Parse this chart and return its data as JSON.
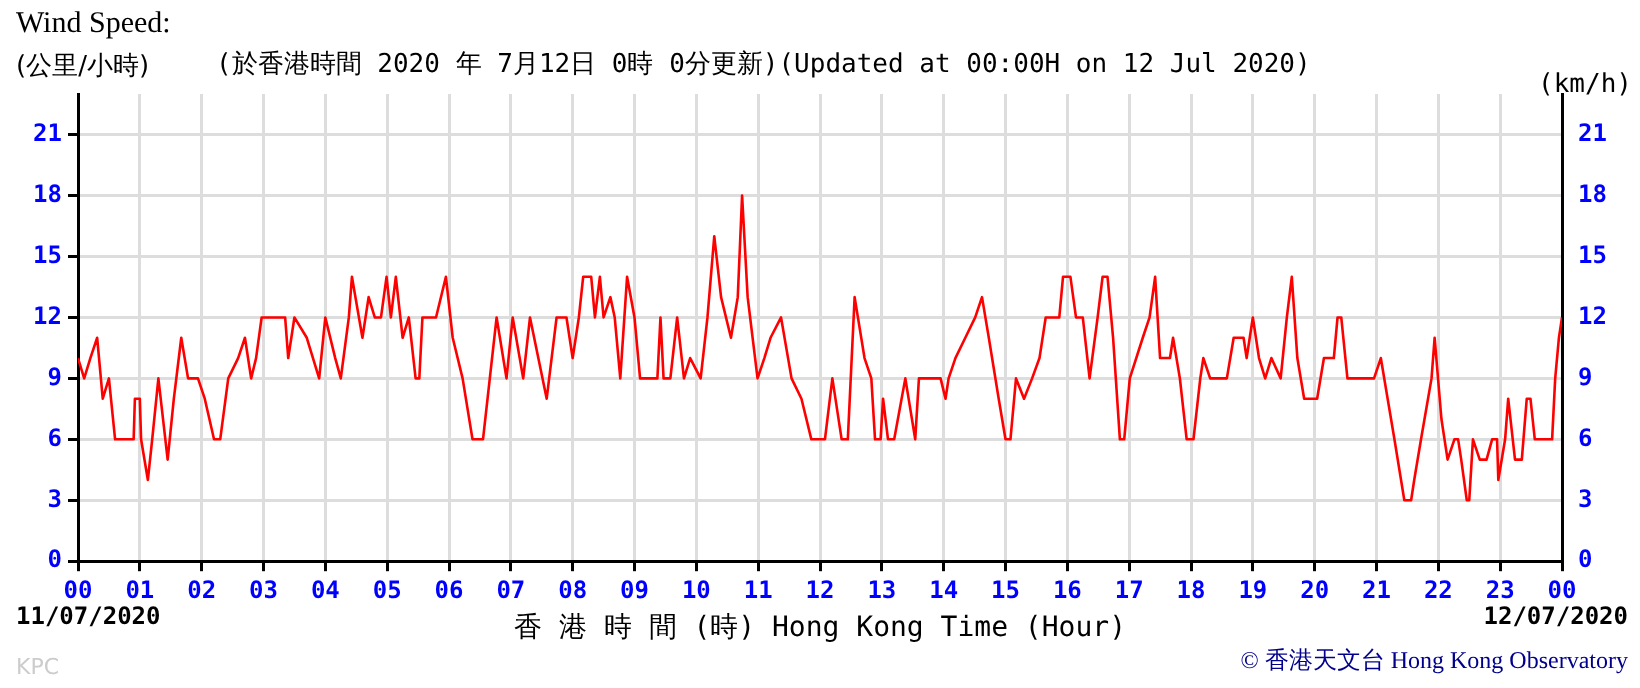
{
  "chart_data": {
    "type": "line",
    "title": "(於香港時間 2020 年 7月12日 0時 0分更新)(Updated at 00:00H on 12 Jul 2020)",
    "xlabel": "香 港 時 間 (時) Hong Kong Time (Hour)",
    "ylabel": "(公里/小時)",
    "y2label": "(km/h)",
    "annotations": [
      "Wind Speed:",
      "11/07/2020",
      "12/07/2020",
      "© 香港天文台 Hong Kong Observatory",
      "KPC"
    ],
    "x": [
      0,
      0.1,
      0.2,
      0.31,
      0.4,
      0.5,
      0.6,
      0.9,
      0.92,
      1.0,
      1.02,
      1.13,
      1.2,
      1.3,
      1.45,
      1.55,
      1.67,
      1.78,
      1.94,
      2.05,
      2.2,
      2.3,
      2.43,
      2.59,
      2.7,
      2.8,
      2.88,
      2.97,
      3.35,
      3.4,
      3.5,
      3.7,
      3.9,
      4.0,
      4.16,
      4.25,
      4.38,
      4.43,
      4.6,
      4.7,
      4.8,
      4.9,
      4.99,
      5.06,
      5.14,
      5.25,
      5.35,
      5.46,
      5.52,
      5.57,
      5.79,
      5.95,
      6.06,
      6.22,
      6.38,
      6.55,
      6.66,
      6.77,
      6.93,
      7.03,
      7.2,
      7.31,
      7.58,
      7.74,
      7.9,
      8.0,
      8.1,
      8.17,
      8.3,
      8.36,
      8.44,
      8.5,
      8.61,
      8.68,
      8.77,
      8.88,
      9.0,
      9.09,
      9.37,
      9.42,
      9.47,
      9.58,
      9.69,
      9.8,
      9.9,
      10.07,
      10.18,
      10.29,
      10.4,
      10.56,
      10.67,
      10.74,
      10.83,
      10.99,
      11.1,
      11.2,
      11.37,
      11.54,
      11.7,
      11.86,
      12.08,
      12.2,
      12.35,
      12.45,
      12.56,
      12.72,
      12.83,
      12.89,
      12.98,
      13.02,
      13.1,
      13.2,
      13.38,
      13.54,
      13.6,
      13.95,
      14.03,
      14.08,
      14.19,
      14.35,
      14.51,
      14.62,
      14.73,
      14.89,
      15.0,
      15.08,
      15.17,
      15.3,
      15.43,
      15.55,
      15.65,
      15.87,
      15.93,
      16.05,
      16.14,
      16.25,
      16.36,
      16.49,
      16.57,
      16.65,
      16.74,
      16.85,
      16.92,
      17.01,
      17.22,
      17.33,
      17.42,
      17.5,
      17.66,
      17.71,
      17.82,
      17.93,
      18.04,
      18.15,
      18.2,
      18.31,
      18.58,
      18.69,
      18.85,
      18.9,
      19.0,
      19.1,
      19.2,
      19.3,
      19.45,
      19.55,
      19.63,
      19.72,
      19.83,
      19.94,
      20.04,
      20.15,
      20.31,
      20.37,
      20.43,
      20.53,
      20.96,
      21.07,
      21.18,
      21.29,
      21.45,
      21.56,
      21.61,
      21.72,
      21.89,
      21.94,
      22.05,
      22.15,
      22.26,
      22.32,
      22.37,
      22.46,
      22.5,
      22.56,
      22.67,
      22.78,
      22.87,
      22.95,
      22.97,
      23.08,
      23.13,
      23.24,
      23.35,
      23.43,
      23.49,
      23.56,
      23.84,
      23.89,
      23.95,
      24
    ],
    "series": [
      {
        "color": "#ff0000",
        "values": [
          10,
          9,
          10,
          11,
          8,
          9,
          6,
          6,
          8,
          8,
          6,
          4,
          6,
          9,
          5,
          8,
          11,
          9,
          9,
          8,
          6,
          6,
          9,
          10,
          11,
          9,
          10,
          12,
          12,
          10,
          12,
          11,
          9,
          12,
          10,
          9,
          12,
          14,
          11,
          13,
          12,
          12,
          14,
          12,
          14,
          11,
          12,
          9,
          9,
          12,
          12,
          14,
          11,
          9,
          6,
          6,
          9,
          12,
          9,
          12,
          9,
          12,
          8,
          12,
          12,
          10,
          12,
          14,
          14,
          12,
          14,
          12,
          13,
          12,
          9,
          14,
          12,
          9,
          9,
          12,
          9,
          9,
          12,
          9,
          10,
          9,
          12,
          16,
          13,
          11,
          13,
          18,
          13,
          9,
          10,
          11,
          12,
          9,
          8,
          6,
          6,
          9,
          6,
          6,
          13,
          10,
          9,
          6,
          6,
          8,
          6,
          6,
          9,
          6,
          9,
          9,
          8,
          9,
          10,
          11,
          12,
          13,
          11,
          8,
          6,
          6,
          9,
          8,
          9,
          10,
          12,
          12,
          14,
          14,
          12,
          12,
          9,
          12,
          14,
          14,
          11,
          6,
          6,
          9,
          11,
          12,
          14,
          10,
          10,
          11,
          9,
          6,
          6,
          9,
          10,
          9,
          9,
          11,
          11,
          10,
          12,
          10,
          9,
          10,
          9,
          12,
          14,
          10,
          8,
          8,
          8,
          10,
          10,
          12,
          12,
          9,
          9,
          10,
          8,
          6,
          3,
          3,
          4,
          6,
          9,
          11,
          7,
          5,
          6,
          6,
          5,
          3,
          3,
          6,
          5,
          5,
          6,
          6,
          4,
          6,
          8,
          5,
          5,
          8,
          8,
          6,
          6,
          9,
          11,
          12
        ]
      }
    ],
    "xlim": [
      0,
      24
    ],
    "xticks": [
      {
        "value": 0,
        "label": "00"
      },
      {
        "value": 1,
        "label": "01"
      },
      {
        "value": 2,
        "label": "02"
      },
      {
        "value": 3,
        "label": "03"
      },
      {
        "value": 4,
        "label": "04"
      },
      {
        "value": 5,
        "label": "05"
      },
      {
        "value": 6,
        "label": "06"
      },
      {
        "value": 7,
        "label": "07"
      },
      {
        "value": 8,
        "label": "08"
      },
      {
        "value": 9,
        "label": "09"
      },
      {
        "value": 10,
        "label": "10"
      },
      {
        "value": 11,
        "label": "11"
      },
      {
        "value": 12,
        "label": "12"
      },
      {
        "value": 13,
        "label": "13"
      },
      {
        "value": 14,
        "label": "14"
      },
      {
        "value": 15,
        "label": "15"
      },
      {
        "value": 16,
        "label": "16"
      },
      {
        "value": 17,
        "label": "17"
      },
      {
        "value": 18,
        "label": "18"
      },
      {
        "value": 19,
        "label": "19"
      },
      {
        "value": 20,
        "label": "20"
      },
      {
        "value": 21,
        "label": "21"
      },
      {
        "value": 22,
        "label": "22"
      },
      {
        "value": 23,
        "label": "23"
      },
      {
        "value": 24,
        "label": "00"
      }
    ],
    "ylim": [
      0,
      23
    ],
    "yticks": [
      0,
      3,
      6,
      9,
      12,
      15,
      18,
      21
    ],
    "y2lim": [
      0,
      23
    ],
    "y2ticks": [
      0,
      3,
      6,
      9,
      12,
      15,
      18,
      21
    ],
    "grid": true,
    "legend": false,
    "marker": "none",
    "line_style": "solid"
  }
}
